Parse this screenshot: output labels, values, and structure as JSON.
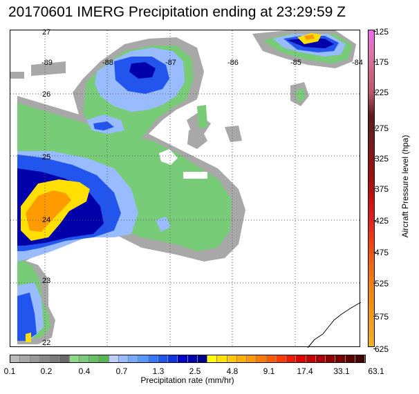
{
  "title": "20170601 IMERG Precipitation ending at 23:29:59 Z",
  "lon_labels": [
    "-89",
    "-88",
    "-87",
    "-86",
    "-85",
    "-84"
  ],
  "lat_labels": [
    "27",
    "26",
    "25",
    "24",
    "23",
    "22"
  ],
  "pressure_scale": {
    "title": "Aircraft Pressure level (hpa)",
    "ticks": [
      "125",
      "175",
      "225",
      "275",
      "325",
      "375",
      "425",
      "475",
      "525",
      "575",
      "625"
    ],
    "colors": [
      "#ee66ee",
      "#dd77aa",
      "#cc6688",
      "#bb5566",
      "#5a1a1a",
      "#6b1f1f",
      "#8a1414",
      "#a01010",
      "#c81010",
      "#e02020",
      "#f04010",
      "#f06010",
      "#f08010",
      "#f09010",
      "#f0a020",
      "#f0b020"
    ]
  },
  "precip_scale": {
    "title": "Precipitation rate (mm/hr)",
    "ticks": [
      "0.1",
      "0.2",
      "0.4",
      "0.7",
      "1.3",
      "2.5",
      "4.8",
      "9.1",
      "17.4",
      "33.1",
      "63.1"
    ],
    "colors": [
      "#bbbbbb",
      "#a8a8a8",
      "#989898",
      "#888888",
      "#7a7a7a",
      "#6a6a6a",
      "#8cd98c",
      "#78cc78",
      "#66c266",
      "#55b855",
      "#bbccff",
      "#99bbff",
      "#77aaff",
      "#5599ff",
      "#3377ff",
      "#2255ee",
      "#1133dd",
      "#0000cc",
      "#0000aa",
      "#000088",
      "#ffff00",
      "#ffe000",
      "#ffc800",
      "#ffb000",
      "#ff9a00",
      "#ff7800",
      "#ff5a00",
      "#ff3a00",
      "#ee1a00",
      "#dd0000",
      "#c40000",
      "#aa0000",
      "#900000",
      "#760000",
      "#5c0000",
      "#420000"
    ]
  }
}
